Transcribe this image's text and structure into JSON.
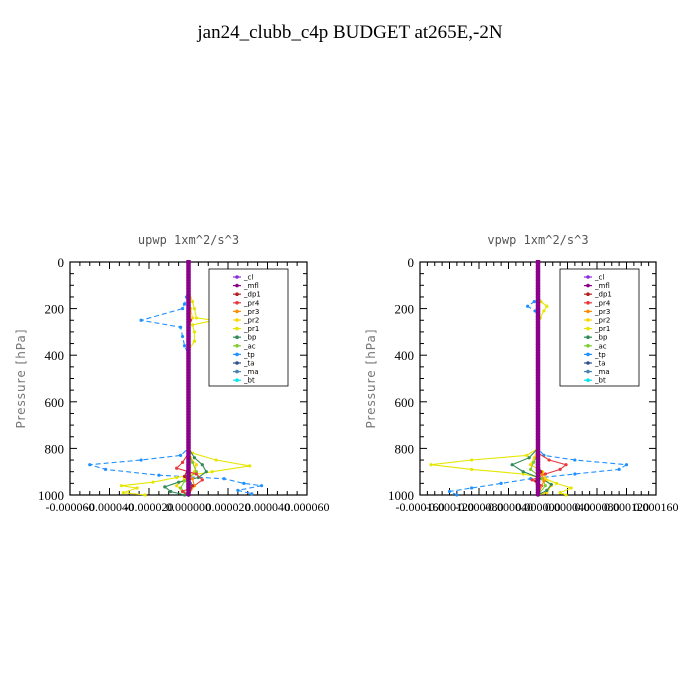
{
  "title": "jan24_clubb_c4p  BUDGET at265E,-2N",
  "colors": {
    "cl": "#8a2be2",
    "mfl": "#8b008b",
    "dp1": "#b22222",
    "pr4": "#e8383d",
    "pr3": "#ff8c00",
    "pr2": "#ffd700",
    "pr1": "#e6e600",
    "bp": "#2e8b57",
    "ac": "#7ccd32",
    "tp": "#1e90ff",
    "ta": "#2f4f8f",
    "ma": "#4682b4",
    "bt": "#00e5ee"
  },
  "chart_data": [
    {
      "type": "line",
      "title": "upwp   1xm^2/s^3",
      "ylabel": "Pressure [hPa]",
      "ylim": [
        1000,
        0
      ],
      "xlim": [
        -6e-05,
        6e-05
      ],
      "x_ticks": [
        "-0.000060",
        "-0.000040",
        "-0.000020",
        "0.000000",
        "0.000020",
        "0.000040",
        "0.000060"
      ],
      "y_ticks": [
        "0",
        "200",
        "400",
        "600",
        "800",
        "1000"
      ],
      "legend_position": "top-right",
      "legend": [
        "_cl",
        "_mfl",
        "_dp1",
        "_pr4",
        "_pr3",
        "_pr2",
        "_pr1",
        "_bp",
        "_ac",
        "_tp",
        "_ta",
        "_ma",
        "_bt"
      ],
      "series": [
        {
          "name": "_tp",
          "color_key": "tp",
          "dash": "5,3",
          "points": [
            [
              0,
              0
            ],
            [
              0,
              100
            ],
            [
              -1e-06,
              150
            ],
            [
              -2e-06,
              180
            ],
            [
              -3e-06,
              200
            ],
            [
              -2.4e-05,
              250
            ],
            [
              -4e-06,
              280
            ],
            [
              -3e-06,
              320
            ],
            [
              -2e-06,
              360
            ],
            [
              0,
              400
            ],
            [
              0,
              800
            ],
            [
              -4e-06,
              830
            ],
            [
              -2.4e-05,
              850
            ],
            [
              -5e-05,
              870
            ],
            [
              -4.2e-05,
              890
            ],
            [
              -1.5e-05,
              915
            ],
            [
              1.8e-05,
              930
            ],
            [
              2.8e-05,
              950
            ],
            [
              3.7e-05,
              960
            ],
            [
              2.5e-05,
              980
            ],
            [
              3.2e-05,
              995
            ]
          ]
        },
        {
          "name": "_pr1",
          "color_key": "pr1",
          "dash": "",
          "points": [
            [
              0,
              0
            ],
            [
              0,
              120
            ],
            [
              2e-06,
              170
            ],
            [
              3e-06,
              200
            ],
            [
              4e-06,
              240
            ],
            [
              1.3e-05,
              250
            ],
            [
              2e-06,
              270
            ],
            [
              3e-06,
              300
            ],
            [
              3e-06,
              340
            ],
            [
              0,
              380
            ],
            [
              0,
              800
            ],
            [
              2e-06,
              820
            ],
            [
              1.4e-05,
              850
            ],
            [
              3.1e-05,
              875
            ],
            [
              1.2e-05,
              900
            ],
            [
              -6e-06,
              925
            ],
            [
              -1.8e-05,
              945
            ],
            [
              -3.4e-05,
              960
            ],
            [
              -2.6e-05,
              970
            ],
            [
              -3.3e-05,
              990
            ],
            [
              -2.2e-05,
              1000
            ]
          ]
        },
        {
          "name": "_pr2",
          "color_key": "pr2",
          "dash": "",
          "points": [
            [
              0,
              0
            ],
            [
              0,
              160
            ],
            [
              1e-06,
              200
            ],
            [
              2e-06,
              240
            ],
            [
              0,
              280
            ],
            [
              0,
              800
            ],
            [
              1e-06,
              840
            ],
            [
              4e-06,
              870
            ],
            [
              3e-06,
              900
            ],
            [
              -2e-06,
              930
            ],
            [
              -6e-06,
              960
            ],
            [
              -3e-06,
              985
            ],
            [
              0,
              1000
            ]
          ]
        },
        {
          "name": "_bp",
          "color_key": "bp",
          "dash": "",
          "points": [
            [
              0,
              0
            ],
            [
              0,
              800
            ],
            [
              3e-06,
              840
            ],
            [
              7e-06,
              870
            ],
            [
              9e-06,
              900
            ],
            [
              5e-06,
              925
            ],
            [
              -5e-06,
              945
            ],
            [
              -1.2e-05,
              965
            ],
            [
              -9e-06,
              985
            ],
            [
              -2e-06,
              1000
            ]
          ]
        },
        {
          "name": "_ac",
          "color_key": "ac",
          "dash": "",
          "points": [
            [
              0,
              0
            ],
            [
              0,
              820
            ],
            [
              2e-06,
              860
            ],
            [
              4e-06,
              900
            ],
            [
              -2e-06,
              940
            ],
            [
              -4e-06,
              970
            ],
            [
              0,
              1000
            ]
          ]
        },
        {
          "name": "_pr4",
          "color_key": "pr4",
          "dash": "",
          "points": [
            [
              0,
              0
            ],
            [
              0,
              230
            ],
            [
              1e-06,
              250
            ],
            [
              0,
              270
            ],
            [
              0,
              820
            ],
            [
              -3e-06,
              860
            ],
            [
              -6e-06,
              885
            ],
            [
              4e-06,
              910
            ],
            [
              7e-06,
              935
            ],
            [
              3e-06,
              960
            ],
            [
              -3e-06,
              985
            ],
            [
              0,
              1000
            ]
          ]
        },
        {
          "name": "_pr3",
          "color_key": "pr3",
          "dash": "",
          "points": [
            [
              0,
              0
            ],
            [
              0,
              900
            ],
            [
              2e-06,
              930
            ],
            [
              3e-06,
              960
            ],
            [
              0,
              1000
            ]
          ]
        },
        {
          "name": "_dp1",
          "color_key": "dp1",
          "dash": "",
          "points": [
            [
              0,
              0
            ],
            [
              0,
              880
            ],
            [
              -2e-06,
              920
            ],
            [
              2e-06,
              960
            ],
            [
              0,
              1000
            ]
          ]
        },
        {
          "name": "_ma",
          "color_key": "ma",
          "dash": "",
          "points": [
            [
              0,
              0
            ],
            [
              0,
              900
            ],
            [
              1e-06,
              950
            ],
            [
              0,
              1000
            ]
          ]
        },
        {
          "name": "_ta",
          "color_key": "ta",
          "dash": "",
          "points": [
            [
              0,
              0
            ],
            [
              0,
              1000
            ]
          ]
        },
        {
          "name": "_bt",
          "color_key": "bt",
          "dash": "",
          "points": [
            [
              0,
              0
            ],
            [
              0,
              1000
            ]
          ]
        },
        {
          "name": "_cl",
          "color_key": "cl",
          "dash": "",
          "points": [
            [
              0,
              0
            ],
            [
              0,
              1000
            ]
          ]
        },
        {
          "name": "_mfl",
          "color_key": "mfl",
          "dash": "",
          "points": [
            [
              0,
              0
            ],
            [
              0,
              1000
            ]
          ]
        }
      ]
    },
    {
      "type": "line",
      "title": "vpwp   1xm^2/s^3",
      "ylabel": "Pressure [hPa]",
      "ylim": [
        1000,
        0
      ],
      "xlim": [
        -0.00016,
        0.00016
      ],
      "x_ticks": [
        "-0.000160",
        "-0.000120",
        "-0.000080",
        "-0.000040",
        "0.000000",
        "0.000040",
        "0.000080",
        "0.000120",
        "0.000160"
      ],
      "y_ticks": [
        "0",
        "200",
        "400",
        "600",
        "800",
        "1000"
      ],
      "legend_position": "top-right",
      "legend": [
        "_cl",
        "_mfl",
        "_dp1",
        "_pr4",
        "_pr3",
        "_pr2",
        "_pr1",
        "_bp",
        "_ac",
        "_tp",
        "_ta",
        "_ma",
        "_bt"
      ],
      "series": [
        {
          "name": "_tp",
          "color_key": "tp",
          "dash": "5,3",
          "points": [
            [
              0,
              0
            ],
            [
              0,
              150
            ],
            [
              -5e-06,
              170
            ],
            [
              -1.4e-05,
              190
            ],
            [
              -4e-06,
              210
            ],
            [
              0,
              230
            ],
            [
              0,
              800
            ],
            [
              8e-06,
              830
            ],
            [
              5e-05,
              850
            ],
            [
              0.00012,
              870
            ],
            [
              0.00011,
              890
            ],
            [
              5e-05,
              910
            ],
            [
              -1e-05,
              930
            ],
            [
              -5e-05,
              950
            ],
            [
              -9e-05,
              970
            ],
            [
              -0.00012,
              985
            ],
            [
              -0.00011,
              1000
            ]
          ]
        },
        {
          "name": "_pr1",
          "color_key": "pr1",
          "dash": "",
          "points": [
            [
              0,
              0
            ],
            [
              0,
              140
            ],
            [
              4e-06,
              170
            ],
            [
              1.2e-05,
              190
            ],
            [
              8e-06,
              210
            ],
            [
              3e-06,
              240
            ],
            [
              0,
              270
            ],
            [
              0,
              800
            ],
            [
              -1.5e-05,
              830
            ],
            [
              -9e-05,
              850
            ],
            [
              -0.000145,
              870
            ],
            [
              -9e-05,
              890
            ],
            [
              -2e-05,
              910
            ],
            [
              1e-05,
              930
            ],
            [
              2.5e-05,
              950
            ],
            [
              4.5e-05,
              970
            ],
            [
              3e-05,
              990
            ],
            [
              3.8e-05,
              1000
            ]
          ]
        },
        {
          "name": "_pr2",
          "color_key": "pr2",
          "dash": "",
          "points": [
            [
              0,
              0
            ],
            [
              0,
              800
            ],
            [
              -5e-06,
              840
            ],
            [
              -1e-05,
              870
            ],
            [
              6e-06,
              900
            ],
            [
              1e-05,
              930
            ],
            [
              1.8e-05,
              960
            ],
            [
              1.2e-05,
              990
            ],
            [
              0,
              1000
            ]
          ]
        },
        {
          "name": "_bp",
          "color_key": "bp",
          "dash": "",
          "points": [
            [
              0,
              0
            ],
            [
              0,
              800
            ],
            [
              -1.2e-05,
              840
            ],
            [
              -3.5e-05,
              870
            ],
            [
              -2e-05,
              900
            ],
            [
              5e-06,
              930
            ],
            [
              1.8e-05,
              955
            ],
            [
              1.2e-05,
              980
            ],
            [
              0,
              1000
            ]
          ]
        },
        {
          "name": "_ac",
          "color_key": "ac",
          "dash": "",
          "points": [
            [
              0,
              0
            ],
            [
              0,
              820
            ],
            [
              -6e-06,
              860
            ],
            [
              -1e-05,
              890
            ],
            [
              6e-06,
              930
            ],
            [
              1e-05,
              960
            ],
            [
              0,
              1000
            ]
          ]
        },
        {
          "name": "_pr4",
          "color_key": "pr4",
          "dash": "",
          "points": [
            [
              0,
              0
            ],
            [
              0,
              820
            ],
            [
              1.5e-05,
              850
            ],
            [
              3.8e-05,
              870
            ],
            [
              3e-05,
              890
            ],
            [
              1e-05,
              910
            ],
            [
              -8e-06,
              935
            ],
            [
              5e-06,
              960
            ],
            [
              0,
              1000
            ]
          ]
        },
        {
          "name": "_pr3",
          "color_key": "pr3",
          "dash": "",
          "points": [
            [
              0,
              0
            ],
            [
              0,
              880
            ],
            [
              5e-06,
              910
            ],
            [
              8e-06,
              940
            ],
            [
              0,
              1000
            ]
          ]
        },
        {
          "name": "_dp1",
          "color_key": "dp1",
          "dash": "",
          "points": [
            [
              0,
              0
            ],
            [
              0,
              870
            ],
            [
              4e-06,
              900
            ],
            [
              -3e-06,
              940
            ],
            [
              0,
              1000
            ]
          ]
        },
        {
          "name": "_ma",
          "color_key": "ma",
          "dash": "",
          "points": [
            [
              0,
              0
            ],
            [
              0,
              1000
            ]
          ]
        },
        {
          "name": "_ta",
          "color_key": "ta",
          "dash": "",
          "points": [
            [
              0,
              0
            ],
            [
              0,
              1000
            ]
          ]
        },
        {
          "name": "_bt",
          "color_key": "bt",
          "dash": "",
          "points": [
            [
              0,
              0
            ],
            [
              0,
              1000
            ]
          ]
        },
        {
          "name": "_cl",
          "color_key": "cl",
          "dash": "",
          "points": [
            [
              0,
              0
            ],
            [
              0,
              1000
            ]
          ]
        },
        {
          "name": "_mfl",
          "color_key": "mfl",
          "dash": "",
          "points": [
            [
              0,
              0
            ],
            [
              0,
              1000
            ]
          ]
        }
      ]
    }
  ]
}
